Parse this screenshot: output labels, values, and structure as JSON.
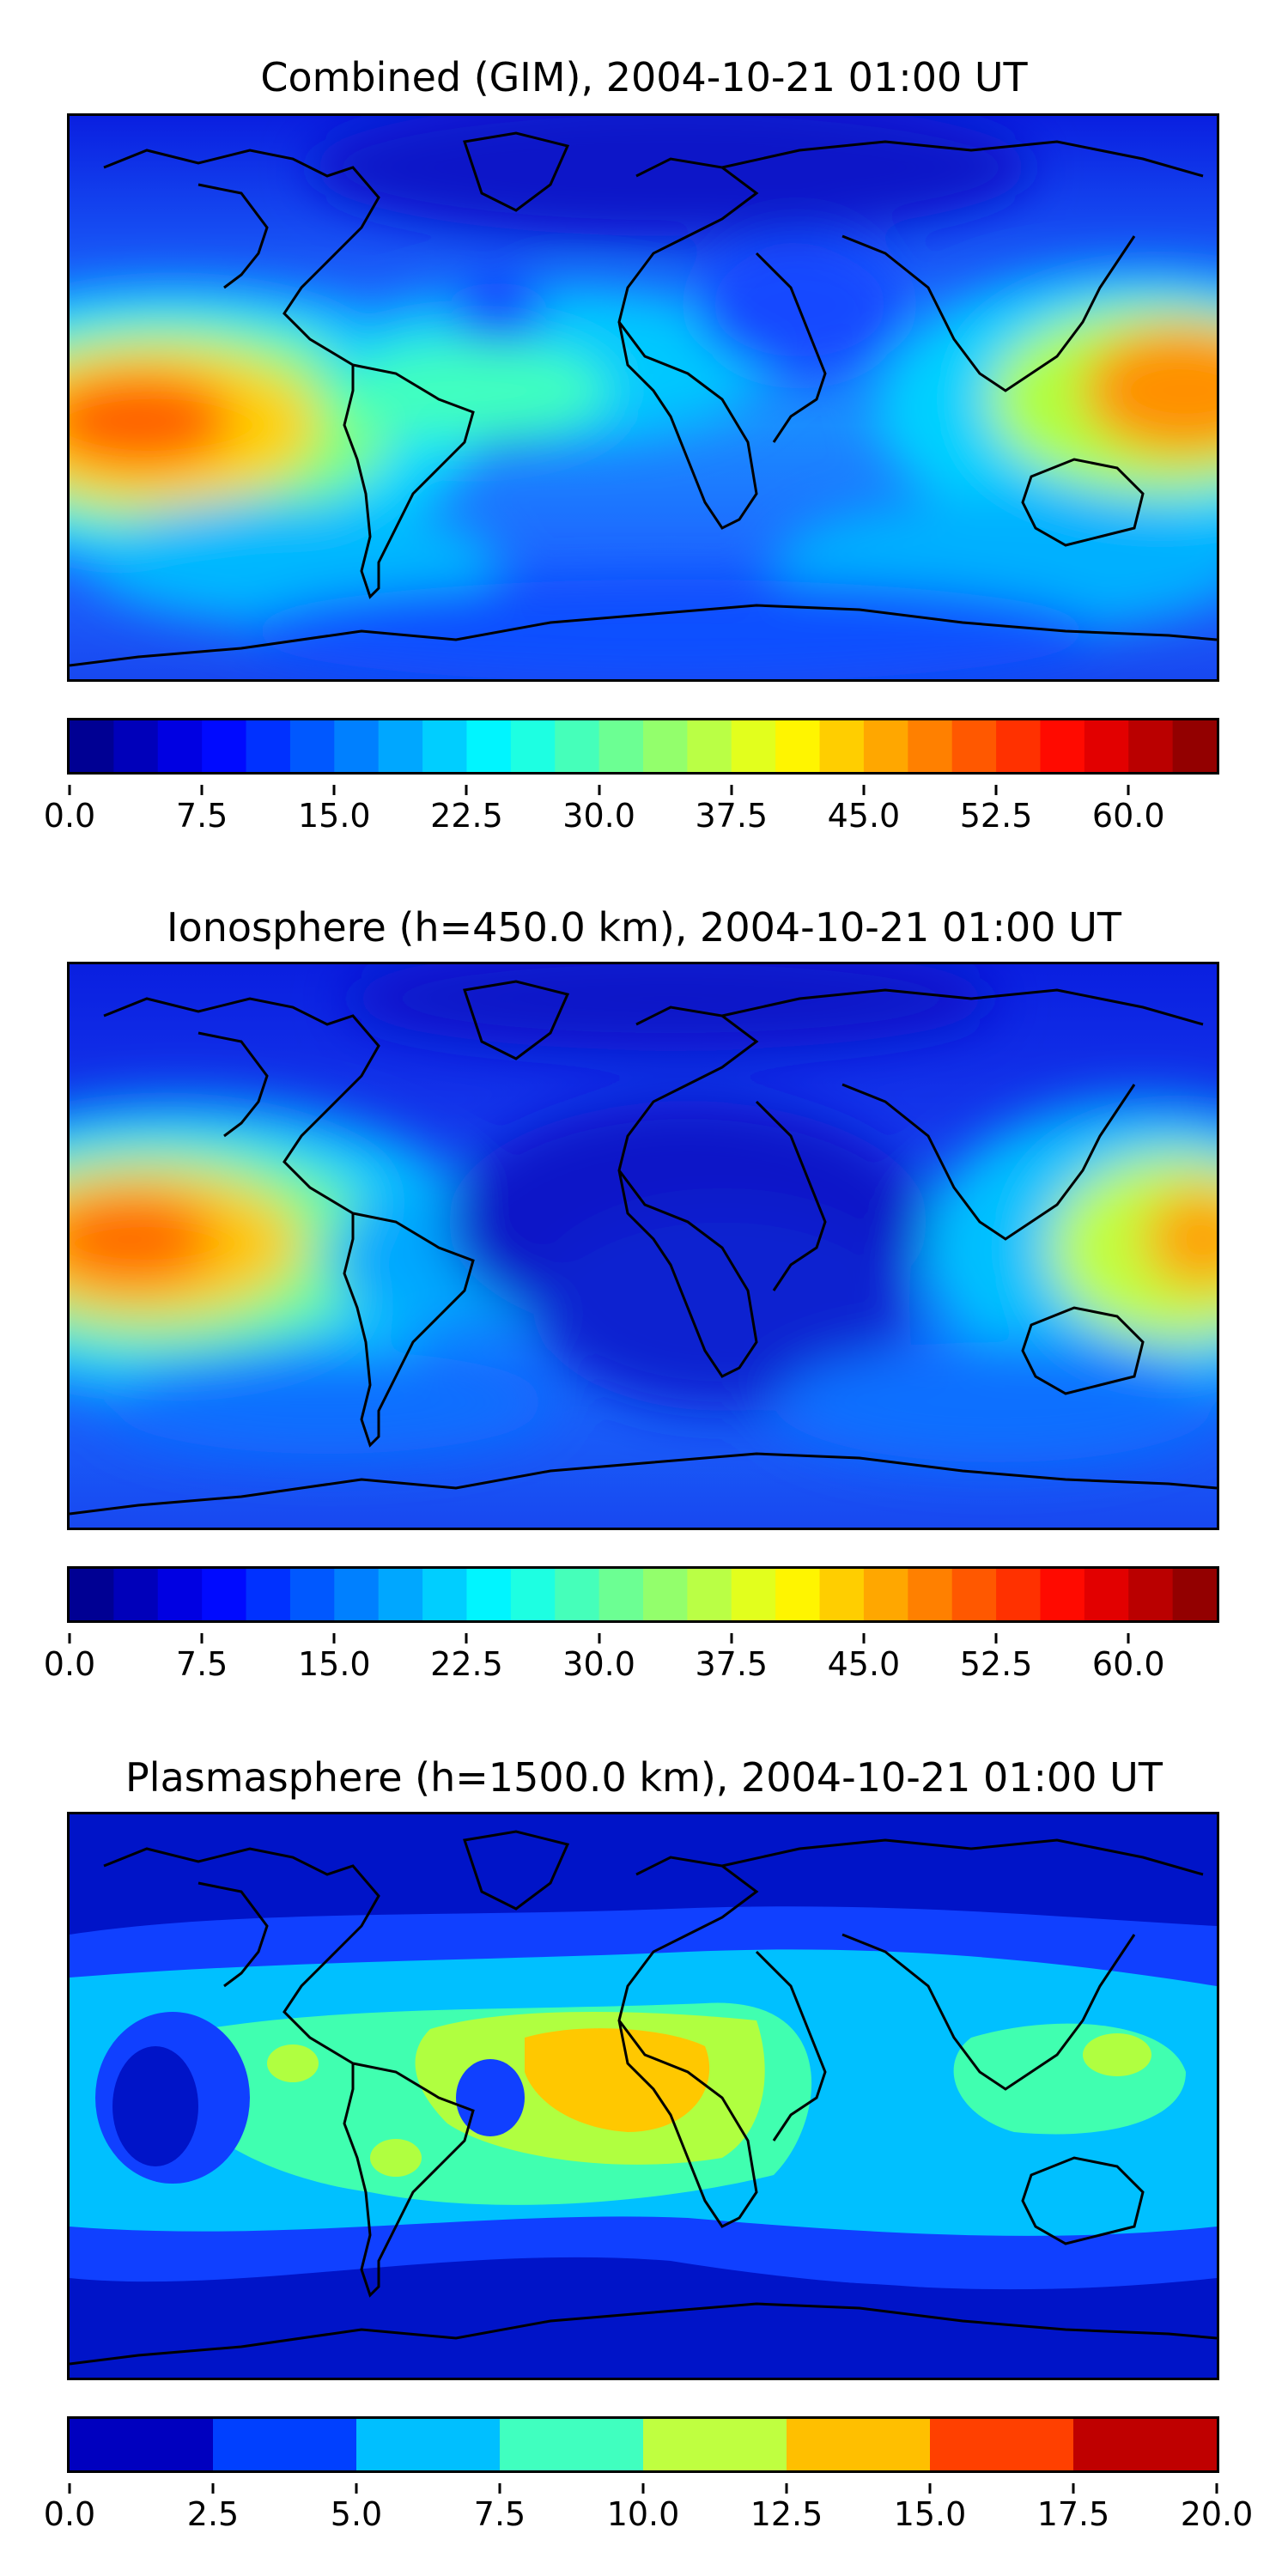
{
  "panels": [
    {
      "title": "Combined (GIM), 2004-10-21 01:00 UT",
      "colorbar": {
        "min": 0.0,
        "max": 65.0,
        "levels": 26,
        "tick_labels": [
          "0.0",
          "7.5",
          "15.0",
          "22.5",
          "30.0",
          "37.5",
          "45.0",
          "52.5",
          "60.0"
        ],
        "tick_values": [
          0.0,
          7.5,
          15.0,
          22.5,
          30.0,
          37.5,
          45.0,
          52.5,
          60.0
        ]
      }
    },
    {
      "title": "Ionosphere  (h=450.0 km), 2004-10-21 01:00 UT",
      "colorbar": {
        "min": 0.0,
        "max": 65.0,
        "levels": 26,
        "tick_labels": [
          "0.0",
          "7.5",
          "15.0",
          "22.5",
          "30.0",
          "37.5",
          "45.0",
          "52.5",
          "60.0"
        ],
        "tick_values": [
          0.0,
          7.5,
          15.0,
          22.5,
          30.0,
          37.5,
          45.0,
          52.5,
          60.0
        ]
      }
    },
    {
      "title": "Plasmasphere (h=1500.0 km), 2004-10-21 01:00 UT",
      "colorbar": {
        "min": 0.0,
        "max": 20.0,
        "levels": 8,
        "tick_labels": [
          "0.0",
          "2.5",
          "5.0",
          "7.5",
          "10.0",
          "12.5",
          "15.0",
          "17.5",
          "20.0"
        ],
        "tick_values": [
          0.0,
          2.5,
          5.0,
          7.5,
          10.0,
          12.5,
          15.0,
          17.5,
          20.0
        ]
      }
    }
  ],
  "colormap": "jet",
  "colors": {
    "coastline": "#000000",
    "background_low": "#1a3cff"
  }
}
